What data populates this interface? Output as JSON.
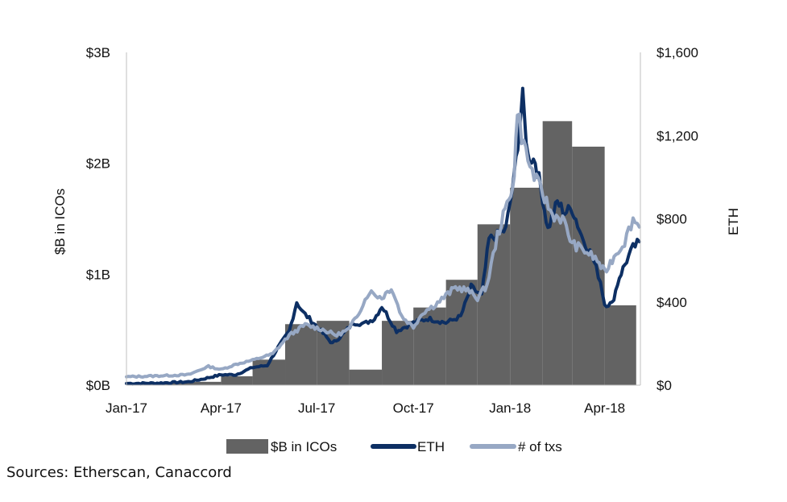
{
  "chart_data": {
    "type": "bar+line",
    "title": "",
    "ylabel_left": "$B in ICOs",
    "ylabel_right": "ETH",
    "left_axis": {
      "min": 0,
      "max": 3,
      "ticks": [
        0,
        1,
        2,
        3
      ],
      "tick_labels": [
        "$0B",
        "$1B",
        "$2B",
        "$3B"
      ]
    },
    "right_axis": {
      "min": 0,
      "max": 1600,
      "ticks": [
        0,
        400,
        800,
        1200,
        1600
      ],
      "tick_labels": [
        "$0",
        "$400",
        "$800",
        "$1,200",
        "$1,600"
      ]
    },
    "x_axis": {
      "start": "2017-01-01",
      "end": "2018-05-05",
      "ticks": [
        "2017-01-01",
        "2017-04-01",
        "2017-07-01",
        "2017-10-01",
        "2018-01-01",
        "2018-04-01"
      ],
      "tick_labels": [
        "Jan-17",
        "Apr-17",
        "Jul-17",
        "Oct-17",
        "Jan-18",
        "Apr-18"
      ]
    },
    "bars": {
      "name": "$B in ICOs",
      "color": "#636363",
      "months": [
        "2017-01",
        "2017-02",
        "2017-03",
        "2017-04",
        "2017-05",
        "2017-06",
        "2017-07",
        "2017-08",
        "2017-09",
        "2017-10",
        "2017-11",
        "2017-12",
        "2018-01",
        "2018-02",
        "2018-03",
        "2018-04"
      ],
      "values": [
        0.01,
        0.02,
        0.03,
        0.08,
        0.23,
        0.55,
        0.58,
        0.14,
        0.58,
        0.7,
        0.95,
        1.45,
        1.78,
        2.38,
        2.15,
        0.72
      ]
    },
    "lines": [
      {
        "name": "ETH",
        "color": "#0d2f63",
        "dates": [
          "2017-01-01",
          "2017-02-01",
          "2017-03-01",
          "2017-03-15",
          "2017-04-01",
          "2017-04-15",
          "2017-05-01",
          "2017-05-15",
          "2017-05-25",
          "2017-06-05",
          "2017-06-12",
          "2017-06-18",
          "2017-06-26",
          "2017-07-05",
          "2017-07-16",
          "2017-07-25",
          "2017-08-05",
          "2017-08-15",
          "2017-08-25",
          "2017-09-01",
          "2017-09-15",
          "2017-10-01",
          "2017-10-15",
          "2017-11-01",
          "2017-11-15",
          "2017-11-25",
          "2017-12-05",
          "2017-12-12",
          "2017-12-20",
          "2017-12-28",
          "2018-01-05",
          "2018-01-10",
          "2018-01-13",
          "2018-01-18",
          "2018-01-25",
          "2018-02-01",
          "2018-02-06",
          "2018-02-15",
          "2018-02-22",
          "2018-03-01",
          "2018-03-10",
          "2018-03-20",
          "2018-03-28",
          "2018-04-01",
          "2018-04-08",
          "2018-04-15",
          "2018-04-22",
          "2018-04-28",
          "2018-05-04"
        ],
        "values": [
          8,
          10,
          16,
          30,
          50,
          50,
          85,
          95,
          180,
          260,
          400,
          350,
          310,
          260,
          200,
          240,
          300,
          295,
          320,
          380,
          260,
          300,
          320,
          300,
          330,
          470,
          430,
          700,
          720,
          750,
          1000,
          1250,
          1380,
          1100,
          1080,
          900,
          750,
          880,
          830,
          850,
          720,
          620,
          500,
          390,
          390,
          520,
          600,
          660,
          690
        ]
      },
      {
        "name": "# of txs",
        "color": "#97a8c4",
        "dates": [
          "2017-01-01",
          "2017-02-01",
          "2017-03-01",
          "2017-03-20",
          "2017-04-01",
          "2017-04-15",
          "2017-05-01",
          "2017-05-20",
          "2017-06-05",
          "2017-06-20",
          "2017-07-05",
          "2017-07-20",
          "2017-08-01",
          "2017-08-10",
          "2017-08-20",
          "2017-09-01",
          "2017-09-10",
          "2017-09-20",
          "2017-10-01",
          "2017-10-10",
          "2017-10-20",
          "2017-11-01",
          "2017-11-10",
          "2017-11-20",
          "2017-12-01",
          "2017-12-10",
          "2017-12-20",
          "2017-12-31",
          "2018-01-05",
          "2018-01-08",
          "2018-01-12",
          "2018-01-20",
          "2018-02-01",
          "2018-02-10",
          "2018-02-20",
          "2018-03-01",
          "2018-03-15",
          "2018-03-25",
          "2018-04-01",
          "2018-04-10",
          "2018-04-20",
          "2018-04-28",
          "2018-05-04"
        ],
        "values": [
          40,
          45,
          50,
          90,
          75,
          100,
          120,
          150,
          240,
          290,
          270,
          240,
          270,
          350,
          450,
          420,
          470,
          330,
          280,
          350,
          380,
          430,
          470,
          460,
          420,
          480,
          720,
          900,
          1000,
          1340,
          1200,
          1050,
          920,
          820,
          800,
          680,
          640,
          600,
          540,
          620,
          690,
          800,
          760
        ]
      }
    ],
    "legend": {
      "position": "bottom",
      "entries": [
        "$B in ICOs",
        "ETH",
        "# of txs"
      ]
    },
    "grid": false
  },
  "source_text": "Sources: Etherscan, Canaccord"
}
